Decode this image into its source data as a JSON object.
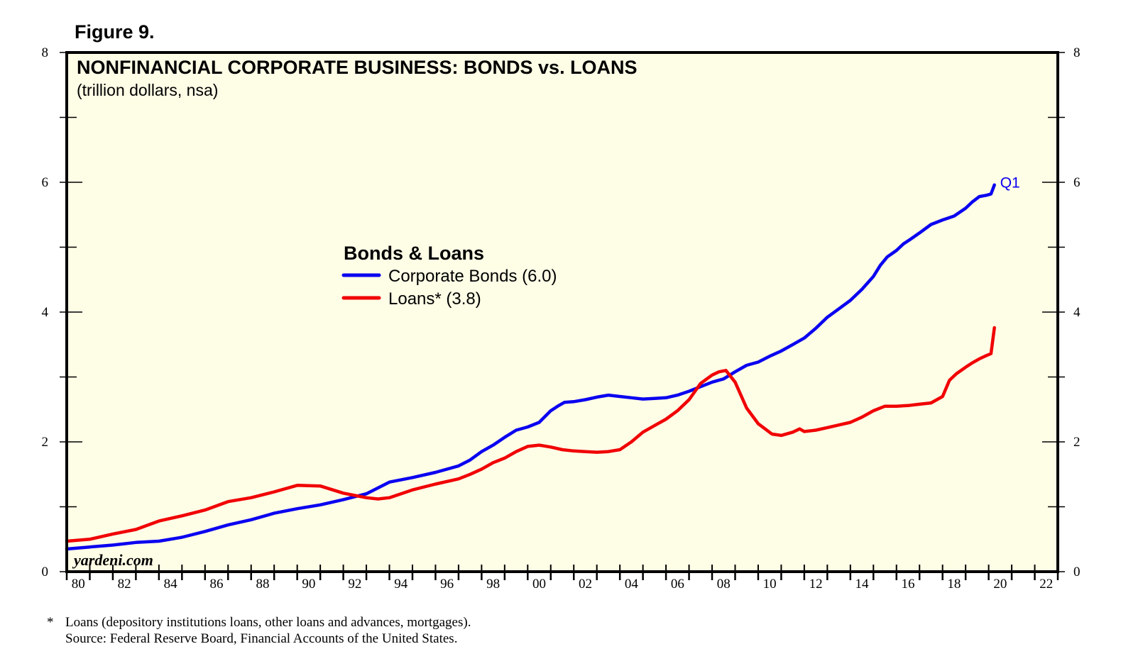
{
  "figure_label": "Figure 9.",
  "footnote": {
    "marker": "*",
    "line1": "Loans (depository institutions loans, other loans and advances, mortgages).",
    "line2": "Source: Federal Reserve Board, Financial Accounts of the United States."
  },
  "chart_data": {
    "type": "line",
    "title": "NONFINANCIAL CORPORATE BUSINESS: BONDS vs. LOANS",
    "subtitle": "(trillion dollars, nsa)",
    "watermark": "yardeni.com",
    "legend": {
      "title": "Bonds & Loans",
      "placement": "center",
      "entries": [
        "Corporate Bonds (6.0)",
        "Loans* (3.8)"
      ]
    },
    "annotation": "Q1",
    "xlim": [
      1980,
      2023
    ],
    "ylim": [
      0,
      8
    ],
    "y_ticks": [
      0,
      2,
      4,
      6,
      8
    ],
    "x_tick_labels": [
      "80",
      "82",
      "84",
      "86",
      "88",
      "90",
      "92",
      "94",
      "96",
      "98",
      "00",
      "02",
      "04",
      "06",
      "08",
      "10",
      "12",
      "14",
      "16",
      "18",
      "20",
      "22"
    ],
    "background_color": "#fefde6",
    "series": [
      {
        "name": "Corporate Bonds (6.0)",
        "color": "#0a00f0",
        "x": [
          1980,
          1981,
          1982,
          1983,
          1984,
          1985,
          1986,
          1987,
          1988,
          1989,
          1990,
          1991,
          1992,
          1993,
          1994,
          1995,
          1996,
          1997,
          1997.5,
          1998,
          1998.5,
          1999,
          1999.5,
          2000,
          2000.5,
          2001,
          2001.3,
          2001.6,
          2002,
          2002.5,
          2003,
          2003.5,
          2004,
          2004.5,
          2005,
          2005.5,
          2006,
          2006.5,
          2007,
          2007.5,
          2008,
          2008.5,
          2009,
          2009.5,
          2010,
          2010.5,
          2011,
          2011.5,
          2012,
          2012.5,
          2013,
          2013.5,
          2014,
          2014.5,
          2015,
          2015.3,
          2015.6,
          2016,
          2016.3,
          2016.6,
          2017,
          2017.5,
          2018,
          2018.5,
          2019,
          2019.3,
          2019.6,
          2019.9,
          2020.1,
          2020.25
        ],
        "y": [
          0.35,
          0.38,
          0.41,
          0.45,
          0.47,
          0.53,
          0.62,
          0.72,
          0.8,
          0.9,
          0.97,
          1.03,
          1.11,
          1.2,
          1.38,
          1.45,
          1.53,
          1.63,
          1.72,
          1.85,
          1.95,
          2.07,
          2.18,
          2.23,
          2.3,
          2.48,
          2.55,
          2.61,
          2.62,
          2.65,
          2.69,
          2.72,
          2.7,
          2.68,
          2.66,
          2.67,
          2.68,
          2.72,
          2.78,
          2.85,
          2.92,
          2.97,
          3.08,
          3.18,
          3.23,
          3.32,
          3.4,
          3.5,
          3.6,
          3.75,
          3.92,
          4.05,
          4.18,
          4.35,
          4.55,
          4.72,
          4.85,
          4.95,
          5.05,
          5.12,
          5.22,
          5.35,
          5.42,
          5.48,
          5.6,
          5.7,
          5.78,
          5.8,
          5.82,
          5.96
        ]
      },
      {
        "name": "Loans* (3.8)",
        "color": "#f00000",
        "x": [
          1980,
          1981,
          1982,
          1983,
          1984,
          1985,
          1986,
          1987,
          1988,
          1989,
          1990,
          1991,
          1992,
          1993,
          1993.5,
          1994,
          1995,
          1996,
          1997,
          1997.5,
          1998,
          1998.5,
          1999,
          1999.5,
          2000,
          2000.5,
          2001,
          2001.5,
          2002,
          2002.5,
          2003,
          2003.5,
          2004,
          2004.5,
          2005,
          2005.5,
          2006,
          2006.5,
          2007,
          2007.5,
          2008,
          2008.3,
          2008.6,
          2009,
          2009.5,
          2010,
          2010.3,
          2010.6,
          2011,
          2011.5,
          2011.8,
          2012,
          2012.5,
          2013,
          2013.5,
          2014,
          2014.5,
          2015,
          2015.5,
          2016,
          2016.5,
          2017,
          2017.5,
          2018,
          2018.3,
          2018.6,
          2019,
          2019.3,
          2019.6,
          2019.9,
          2020.1,
          2020.25
        ],
        "y": [
          0.47,
          0.5,
          0.58,
          0.65,
          0.78,
          0.86,
          0.95,
          1.08,
          1.14,
          1.23,
          1.33,
          1.32,
          1.21,
          1.14,
          1.12,
          1.14,
          1.26,
          1.35,
          1.43,
          1.5,
          1.58,
          1.68,
          1.75,
          1.85,
          1.93,
          1.95,
          1.92,
          1.88,
          1.86,
          1.85,
          1.84,
          1.85,
          1.88,
          2.0,
          2.15,
          2.25,
          2.35,
          2.48,
          2.65,
          2.9,
          3.03,
          3.08,
          3.1,
          2.92,
          2.52,
          2.28,
          2.2,
          2.12,
          2.1,
          2.15,
          2.2,
          2.16,
          2.18,
          2.22,
          2.26,
          2.3,
          2.38,
          2.48,
          2.55,
          2.55,
          2.56,
          2.58,
          2.6,
          2.7,
          2.95,
          3.05,
          3.15,
          3.22,
          3.28,
          3.33,
          3.36,
          3.76
        ]
      }
    ]
  }
}
